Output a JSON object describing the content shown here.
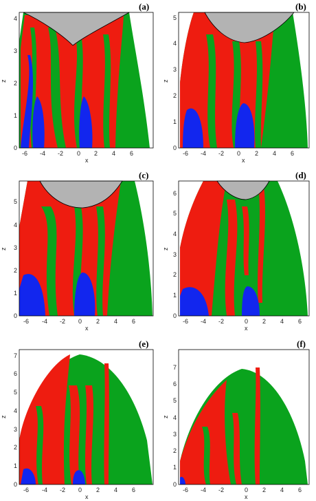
{
  "figure": {
    "colors": {
      "red": "#ee1c10",
      "green": "#0aa31d",
      "blue": "#1226ee",
      "gray": "#b3b3b3"
    },
    "panels": [
      {
        "tag": "(a)",
        "xlabel": "x",
        "ylabel": "z",
        "xticks": [
          "-6",
          "-4",
          "-2",
          "0",
          "2",
          "4",
          "6"
        ],
        "yticks": [
          "0",
          "1",
          "2",
          "3",
          "4"
        ],
        "xlim": [
          -7.5,
          7.0
        ],
        "ylim": [
          0,
          4.2
        ]
      },
      {
        "tag": "(b)",
        "xlabel": "x",
        "ylabel": "z",
        "xticks": [
          "-6",
          "-4",
          "-2",
          "0",
          "2",
          "4",
          "6"
        ],
        "yticks": [
          "0",
          "1",
          "2",
          "3",
          "4",
          "5"
        ],
        "xlim": [
          -7.5,
          7.0
        ],
        "ylim": [
          0,
          5.2
        ]
      },
      {
        "tag": "(c)",
        "xlabel": "x",
        "ylabel": "z",
        "xticks": [
          "-6",
          "-4",
          "-2",
          "0",
          "2",
          "4",
          "6"
        ],
        "yticks": [
          "0",
          "1",
          "2",
          "3",
          "4",
          "5"
        ],
        "xlim": [
          -7.5,
          7.5
        ],
        "ylim": [
          0,
          5.9
        ]
      },
      {
        "tag": "(d)",
        "xlabel": "x",
        "ylabel": "z",
        "xticks": [
          "-6",
          "-4",
          "-2",
          "0",
          "2",
          "4",
          "6"
        ],
        "yticks": [
          "0",
          "1",
          "2",
          "3",
          "4",
          "5",
          "6"
        ],
        "xlim": [
          -7.5,
          7.5
        ],
        "ylim": [
          0,
          6.6
        ]
      },
      {
        "tag": "(e)",
        "xlabel": "x",
        "ylabel": "z",
        "xticks": [
          "-6",
          "-4",
          "-2",
          "0",
          "2",
          "4",
          "6"
        ],
        "yticks": [
          "0",
          "1",
          "2",
          "3",
          "4",
          "5",
          "6",
          "7"
        ],
        "xlim": [
          -7.5,
          7.5
        ],
        "ylim": [
          0,
          7.3
        ]
      },
      {
        "tag": "(f)",
        "xlabel": "x",
        "ylabel": "z",
        "xticks": [
          "-6",
          "-4",
          "-2",
          "0",
          "2",
          "4",
          "6"
        ],
        "yticks": [
          "0",
          "1",
          "2",
          "3",
          "4",
          "5",
          "6",
          "7"
        ],
        "xlim": [
          -7.5,
          7.5
        ],
        "ylim": [
          0,
          8.0
        ]
      }
    ]
  }
}
